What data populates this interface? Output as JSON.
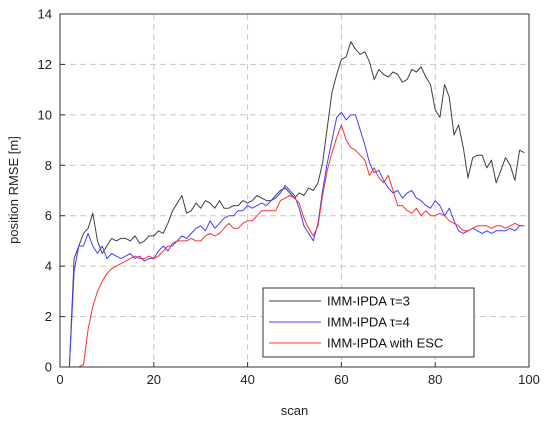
{
  "chart_data": {
    "type": "line",
    "title": "",
    "xlabel": "scan",
    "ylabel": "position RMSE [m]",
    "xlim": [
      0,
      100
    ],
    "ylim": [
      0,
      14
    ],
    "xticks": [
      "0",
      "20",
      "40",
      "60",
      "80",
      "100"
    ],
    "yticks": [
      "0",
      "2",
      "4",
      "6",
      "8",
      "10",
      "12",
      "14"
    ],
    "grid": true,
    "legend_position": "bottom-right",
    "series": [
      {
        "name": "IMM-IPDA τ=3",
        "color": "#404040",
        "x": [
          0,
          1,
          2,
          3,
          4,
          5,
          6,
          7,
          8,
          9,
          10,
          11,
          12,
          13,
          14,
          15,
          16,
          17,
          18,
          19,
          20,
          21,
          22,
          23,
          24,
          25,
          26,
          27,
          28,
          29,
          30,
          31,
          32,
          33,
          34,
          35,
          36,
          37,
          38,
          39,
          40,
          41,
          42,
          43,
          44,
          45,
          46,
          47,
          48,
          49,
          50,
          51,
          52,
          53,
          54,
          55,
          56,
          57,
          58,
          59,
          60,
          61,
          62,
          63,
          64,
          65,
          66,
          67,
          68,
          69,
          70,
          71,
          72,
          73,
          74,
          75,
          76,
          77,
          78,
          79,
          80,
          81,
          82,
          83,
          84,
          85,
          86,
          87,
          88,
          89,
          90,
          91,
          92,
          93,
          94,
          95,
          96,
          97,
          98,
          99
        ],
        "values": [
          0,
          0,
          0,
          4.3,
          4.8,
          5.3,
          5.5,
          6.1,
          5.0,
          4.5,
          4.8,
          5.1,
          5.0,
          5.1,
          5.1,
          5.0,
          5.2,
          4.9,
          5.0,
          5.2,
          5.2,
          5.4,
          5.3,
          5.7,
          6.2,
          6.5,
          6.8,
          6.1,
          6.2,
          6.5,
          6.3,
          6.6,
          6.5,
          6.3,
          6.6,
          6.3,
          6.3,
          6.4,
          6.4,
          6.6,
          6.5,
          6.6,
          6.8,
          6.7,
          6.6,
          6.6,
          6.8,
          7.0,
          7.1,
          6.9,
          6.7,
          6.9,
          6.8,
          7.1,
          7.0,
          7.3,
          8.1,
          9.5,
          10.9,
          11.6,
          12.2,
          12.3,
          12.9,
          12.6,
          12.4,
          12.5,
          12.1,
          11.4,
          11.8,
          11.6,
          11.5,
          11.7,
          11.6,
          11.3,
          11.4,
          11.8,
          11.7,
          11.9,
          11.5,
          11.2,
          10.2,
          9.9,
          11.2,
          10.7,
          9.2,
          9.6,
          8.7,
          7.5,
          8.3,
          8.4,
          8.4,
          7.9,
          8.2,
          7.3,
          7.8,
          8.3,
          8.0,
          7.4,
          8.6,
          8.5
        ]
      },
      {
        "name": "IMM-IPDA τ=4",
        "color": "#4040ff",
        "x": [
          0,
          1,
          2,
          3,
          4,
          5,
          6,
          7,
          8,
          9,
          10,
          11,
          12,
          13,
          14,
          15,
          16,
          17,
          18,
          19,
          20,
          21,
          22,
          23,
          24,
          25,
          26,
          27,
          28,
          29,
          30,
          31,
          32,
          33,
          34,
          35,
          36,
          37,
          38,
          39,
          40,
          41,
          42,
          43,
          44,
          45,
          46,
          47,
          48,
          49,
          50,
          51,
          52,
          53,
          54,
          55,
          56,
          57,
          58,
          59,
          60,
          61,
          62,
          63,
          64,
          65,
          66,
          67,
          68,
          69,
          70,
          71,
          72,
          73,
          74,
          75,
          76,
          77,
          78,
          79,
          80,
          81,
          82,
          83,
          84,
          85,
          86,
          87,
          88,
          89,
          90,
          91,
          92,
          93,
          94,
          95,
          96,
          97,
          98,
          99
        ],
        "values": [
          0,
          0,
          0,
          3.8,
          4.8,
          4.8,
          5.3,
          4.8,
          4.5,
          4.8,
          4.3,
          4.5,
          4.4,
          4.3,
          4.4,
          4.5,
          4.3,
          4.4,
          4.2,
          4.3,
          4.3,
          4.6,
          4.8,
          4.6,
          4.9,
          5.0,
          5.2,
          5.1,
          5.3,
          5.5,
          5.6,
          5.4,
          5.8,
          5.5,
          5.7,
          5.9,
          6.0,
          6.0,
          6.2,
          6.2,
          6.4,
          6.3,
          6.4,
          6.5,
          6.4,
          6.6,
          6.7,
          6.9,
          7.2,
          7.0,
          6.8,
          6.3,
          5.6,
          5.3,
          5.0,
          5.7,
          7.0,
          8.1,
          9.0,
          9.9,
          10.1,
          9.8,
          10.0,
          10.0,
          9.4,
          8.8,
          8.1,
          7.7,
          7.8,
          7.4,
          7.1,
          6.9,
          7.0,
          6.7,
          6.9,
          7.0,
          6.7,
          6.6,
          6.4,
          6.3,
          6.6,
          6.4,
          6.0,
          6.3,
          5.8,
          5.4,
          5.3,
          5.4,
          5.5,
          5.4,
          5.3,
          5.4,
          5.3,
          5.4,
          5.4,
          5.4,
          5.5,
          5.4,
          5.6,
          5.6
        ]
      },
      {
        "name": "IMM-IPDA with ESC",
        "color": "#ff3030",
        "x": [
          0,
          1,
          2,
          3,
          4,
          5,
          6,
          7,
          8,
          9,
          10,
          11,
          12,
          13,
          14,
          15,
          16,
          17,
          18,
          19,
          20,
          21,
          22,
          23,
          24,
          25,
          26,
          27,
          28,
          29,
          30,
          31,
          32,
          33,
          34,
          35,
          36,
          37,
          38,
          39,
          40,
          41,
          42,
          43,
          44,
          45,
          46,
          47,
          48,
          49,
          50,
          51,
          52,
          53,
          54,
          55,
          56,
          57,
          58,
          59,
          60,
          61,
          62,
          63,
          64,
          65,
          66,
          67,
          68,
          69,
          70,
          71,
          72,
          73,
          74,
          75,
          76,
          77,
          78,
          79,
          80,
          81,
          82,
          83,
          84,
          85,
          86,
          87,
          88,
          89,
          90,
          91,
          92,
          93,
          94,
          95,
          96,
          97,
          98,
          99
        ],
        "values": [
          0,
          0,
          0,
          0,
          0,
          0.1,
          1.5,
          2.4,
          3.0,
          3.4,
          3.7,
          3.9,
          4.0,
          4.1,
          4.2,
          4.3,
          4.4,
          4.3,
          4.3,
          4.4,
          4.3,
          4.4,
          4.6,
          4.8,
          4.8,
          5.0,
          5.0,
          5.0,
          5.1,
          5.0,
          5.0,
          5.2,
          5.3,
          5.2,
          5.3,
          5.5,
          5.7,
          5.5,
          5.5,
          5.7,
          5.8,
          5.8,
          6.0,
          6.2,
          6.2,
          6.2,
          6.2,
          6.6,
          6.7,
          6.8,
          6.7,
          6.5,
          5.9,
          5.5,
          5.2,
          5.6,
          6.8,
          7.8,
          8.5,
          9.1,
          9.6,
          9.0,
          8.7,
          8.6,
          8.4,
          8.2,
          7.6,
          7.9,
          7.5,
          7.3,
          7.6,
          7.0,
          6.4,
          6.4,
          6.2,
          6.1,
          6.3,
          6.0,
          6.2,
          6.0,
          6.0,
          6.1,
          6.0,
          5.8,
          5.7,
          5.6,
          5.4,
          5.4,
          5.5,
          5.6,
          5.6,
          5.6,
          5.5,
          5.6,
          5.6,
          5.5,
          5.6,
          5.7,
          5.6,
          5.6
        ]
      }
    ]
  }
}
